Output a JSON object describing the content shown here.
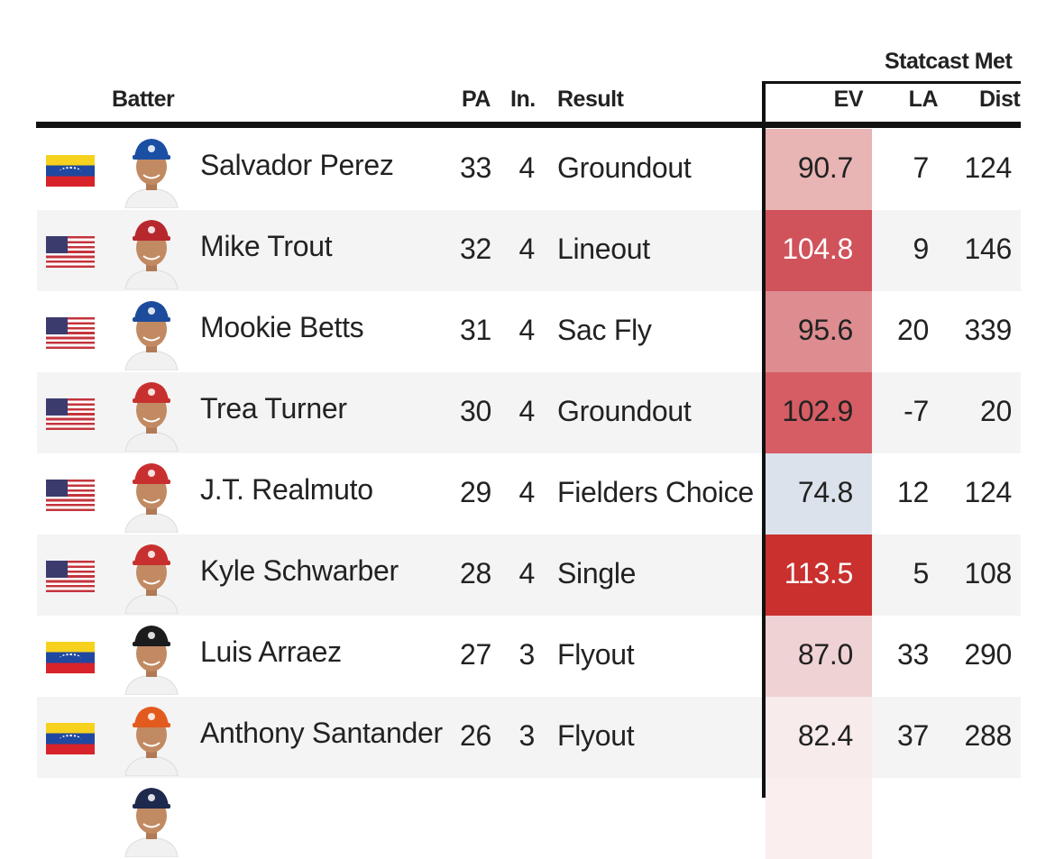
{
  "headers": {
    "group": "Statcast Met",
    "batter": "Batter",
    "pa": "PA",
    "inning": "In.",
    "result": "Result",
    "ev": "EV",
    "la": "LA",
    "dist": "Dist"
  },
  "rows": [
    {
      "flag": "venezuela-flag",
      "cap_color": "#1a4fa3",
      "name": "Salvador Perez",
      "pa": "33",
      "inning": "4",
      "result": "Groundout",
      "ev": "90.7",
      "ev_color": "#e8b4b4",
      "ev_text_color": "#222222",
      "la": "7",
      "dist": "124"
    },
    {
      "flag": "usa-flag",
      "cap_color": "#b7282e",
      "name": "Mike Trout",
      "pa": "32",
      "inning": "4",
      "result": "Lineout",
      "ev": "104.8",
      "ev_color": "#d0525a",
      "ev_text_color": "#ffffff",
      "la": "9",
      "dist": "146"
    },
    {
      "flag": "usa-flag",
      "cap_color": "#1e4c9c",
      "name": "Mookie Betts",
      "pa": "31",
      "inning": "4",
      "result": "Sac Fly",
      "ev": "95.6",
      "ev_color": "#dd8c90",
      "ev_text_color": "#222222",
      "la": "20",
      "dist": "339"
    },
    {
      "flag": "usa-flag",
      "cap_color": "#c8302f",
      "name": "Trea Turner",
      "pa": "30",
      "inning": "4",
      "result": "Groundout",
      "ev": "102.9",
      "ev_color": "#d55d63",
      "ev_text_color": "#222222",
      "la": "-7",
      "dist": "20"
    },
    {
      "flag": "usa-flag",
      "cap_color": "#c8302f",
      "name": "J.T. Realmuto",
      "pa": "29",
      "inning": "4",
      "result": "Fielders Choice",
      "ev": "74.8",
      "ev_color": "#dce2ec",
      "ev_text_color": "#222222",
      "la": "12",
      "dist": "124"
    },
    {
      "flag": "usa-flag",
      "cap_color": "#c8302f",
      "name": "Kyle Schwarber",
      "pa": "28",
      "inning": "4",
      "result": "Single",
      "ev": "113.5",
      "ev_color": "#c9302e",
      "ev_text_color": "#ffffff",
      "la": "5",
      "dist": "108"
    },
    {
      "flag": "venezuela-flag",
      "cap_color": "#1c1c1c",
      "name": "Luis Arraez",
      "pa": "27",
      "inning": "3",
      "result": "Flyout",
      "ev": "87.0",
      "ev_color": "#efd2d3",
      "ev_text_color": "#222222",
      "la": "33",
      "dist": "290"
    },
    {
      "flag": "venezuela-flag",
      "cap_color": "#e35a1e",
      "name": "Anthony Santander",
      "pa": "26",
      "inning": "3",
      "result": "Flyout",
      "ev": "82.4",
      "ev_color": "#f7ebeb",
      "ev_text_color": "#222222",
      "la": "37",
      "dist": "288"
    },
    {
      "flag": "",
      "cap_color": "#1d2a4d",
      "name": "",
      "pa": "",
      "inning": "",
      "result": "",
      "ev": "",
      "ev_color": "#faeeee",
      "ev_text_color": "#222222",
      "la": "",
      "dist": ""
    }
  ]
}
